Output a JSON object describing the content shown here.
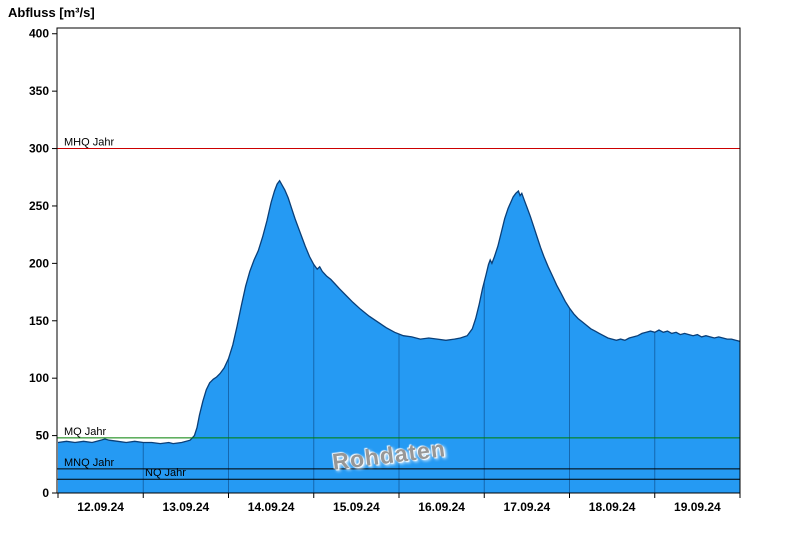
{
  "chart_data": {
    "type": "area",
    "title": "Abfluss [m³/s]",
    "ylabel": "Abfluss [m³/s]",
    "xlabel": "",
    "watermark": "Rohdaten",
    "xlim": [
      0,
      8
    ],
    "ylim": [
      0,
      405
    ],
    "x_unit": "days since 12.09.24 00:00",
    "x_tick_labels": [
      "12.09.24",
      "13.09.24",
      "14.09.24",
      "15.09.24",
      "16.09.24",
      "17.09.24",
      "18.09.24",
      "19.09.24"
    ],
    "y_ticks": [
      0,
      50,
      100,
      150,
      200,
      250,
      300,
      350,
      400
    ],
    "grid": "vertical day lines clipped inside area",
    "legend": "none",
    "colors": {
      "area_fill": "#259af3",
      "curve_line": "#0a3f78",
      "day_grid": "#0a3f78",
      "axis": "#000000",
      "watermark": "#979797"
    },
    "reference_lines": [
      {
        "label": "MHQ Jahr",
        "value": 300,
        "color": "#cc0000",
        "label_indent": 7
      },
      {
        "label": "MQ Jahr",
        "value": 48,
        "color": "#007f00",
        "label_indent": 7
      },
      {
        "label": "MNQ Jahr",
        "value": 21,
        "color": "#000000",
        "label_indent": 7
      },
      {
        "label": "NQ Jahr",
        "value": 12,
        "color": "#000000",
        "label_indent": 88
      }
    ],
    "series": [
      {
        "name": "Abfluss Rohdaten",
        "unit": "m³/s",
        "points": [
          [
            0.0,
            44
          ],
          [
            0.1,
            45
          ],
          [
            0.2,
            44
          ],
          [
            0.3,
            45
          ],
          [
            0.4,
            44
          ],
          [
            0.5,
            46
          ],
          [
            0.55,
            47
          ],
          [
            0.6,
            46
          ],
          [
            0.7,
            45
          ],
          [
            0.8,
            44
          ],
          [
            0.9,
            45
          ],
          [
            1.0,
            44
          ],
          [
            1.1,
            44
          ],
          [
            1.2,
            43
          ],
          [
            1.3,
            44
          ],
          [
            1.35,
            43
          ],
          [
            1.45,
            44
          ],
          [
            1.55,
            46
          ],
          [
            1.6,
            50
          ],
          [
            1.63,
            57
          ],
          [
            1.66,
            68
          ],
          [
            1.7,
            80
          ],
          [
            1.74,
            90
          ],
          [
            1.78,
            96
          ],
          [
            1.82,
            99
          ],
          [
            1.86,
            101
          ],
          [
            1.9,
            104
          ],
          [
            1.95,
            109
          ],
          [
            2.0,
            117
          ],
          [
            2.05,
            129
          ],
          [
            2.1,
            145
          ],
          [
            2.15,
            163
          ],
          [
            2.2,
            180
          ],
          [
            2.25,
            193
          ],
          [
            2.3,
            203
          ],
          [
            2.35,
            211
          ],
          [
            2.4,
            223
          ],
          [
            2.45,
            237
          ],
          [
            2.5,
            253
          ],
          [
            2.54,
            263
          ],
          [
            2.57,
            269
          ],
          [
            2.6,
            272
          ],
          [
            2.63,
            268
          ],
          [
            2.66,
            264
          ],
          [
            2.7,
            257
          ],
          [
            2.74,
            248
          ],
          [
            2.78,
            239
          ],
          [
            2.82,
            231
          ],
          [
            2.86,
            223
          ],
          [
            2.9,
            215
          ],
          [
            2.95,
            206
          ],
          [
            3.0,
            199
          ],
          [
            3.04,
            195
          ],
          [
            3.07,
            197
          ],
          [
            3.1,
            193
          ],
          [
            3.15,
            189
          ],
          [
            3.2,
            186
          ],
          [
            3.25,
            182
          ],
          [
            3.3,
            178
          ],
          [
            3.38,
            172
          ],
          [
            3.46,
            166
          ],
          [
            3.55,
            160
          ],
          [
            3.65,
            154
          ],
          [
            3.75,
            149
          ],
          [
            3.85,
            144
          ],
          [
            3.95,
            140
          ],
          [
            4.05,
            137
          ],
          [
            4.15,
            136
          ],
          [
            4.25,
            134
          ],
          [
            4.35,
            135
          ],
          [
            4.45,
            134
          ],
          [
            4.55,
            133
          ],
          [
            4.65,
            134
          ],
          [
            4.72,
            135
          ],
          [
            4.8,
            137
          ],
          [
            4.86,
            143
          ],
          [
            4.9,
            152
          ],
          [
            4.94,
            164
          ],
          [
            4.98,
            178
          ],
          [
            5.02,
            190
          ],
          [
            5.05,
            199
          ],
          [
            5.07,
            203
          ],
          [
            5.09,
            200
          ],
          [
            5.12,
            206
          ],
          [
            5.16,
            215
          ],
          [
            5.2,
            227
          ],
          [
            5.24,
            239
          ],
          [
            5.28,
            248
          ],
          [
            5.31,
            253
          ],
          [
            5.34,
            258
          ],
          [
            5.37,
            261
          ],
          [
            5.4,
            263
          ],
          [
            5.42,
            259
          ],
          [
            5.44,
            261
          ],
          [
            5.47,
            255
          ],
          [
            5.5,
            249
          ],
          [
            5.54,
            241
          ],
          [
            5.58,
            232
          ],
          [
            5.62,
            223
          ],
          [
            5.66,
            214
          ],
          [
            5.7,
            206
          ],
          [
            5.75,
            197
          ],
          [
            5.8,
            189
          ],
          [
            5.85,
            181
          ],
          [
            5.9,
            174
          ],
          [
            5.95,
            167
          ],
          [
            6.0,
            161
          ],
          [
            6.05,
            156
          ],
          [
            6.1,
            152
          ],
          [
            6.15,
            149
          ],
          [
            6.2,
            146
          ],
          [
            6.25,
            143
          ],
          [
            6.3,
            141
          ],
          [
            6.35,
            139
          ],
          [
            6.4,
            137
          ],
          [
            6.45,
            135
          ],
          [
            6.5,
            134
          ],
          [
            6.55,
            133
          ],
          [
            6.6,
            134
          ],
          [
            6.65,
            133
          ],
          [
            6.7,
            135
          ],
          [
            6.75,
            136
          ],
          [
            6.8,
            137
          ],
          [
            6.85,
            139
          ],
          [
            6.9,
            140
          ],
          [
            6.95,
            141
          ],
          [
            7.0,
            140
          ],
          [
            7.05,
            142
          ],
          [
            7.1,
            140
          ],
          [
            7.15,
            141
          ],
          [
            7.2,
            139
          ],
          [
            7.25,
            140
          ],
          [
            7.3,
            138
          ],
          [
            7.35,
            139
          ],
          [
            7.4,
            138
          ],
          [
            7.45,
            137
          ],
          [
            7.5,
            138
          ],
          [
            7.55,
            136
          ],
          [
            7.6,
            137
          ],
          [
            7.65,
            136
          ],
          [
            7.7,
            135
          ],
          [
            7.75,
            136
          ],
          [
            7.8,
            135
          ],
          [
            7.85,
            134
          ],
          [
            7.9,
            134
          ],
          [
            7.95,
            133
          ],
          [
            8.0,
            132
          ]
        ]
      }
    ]
  }
}
